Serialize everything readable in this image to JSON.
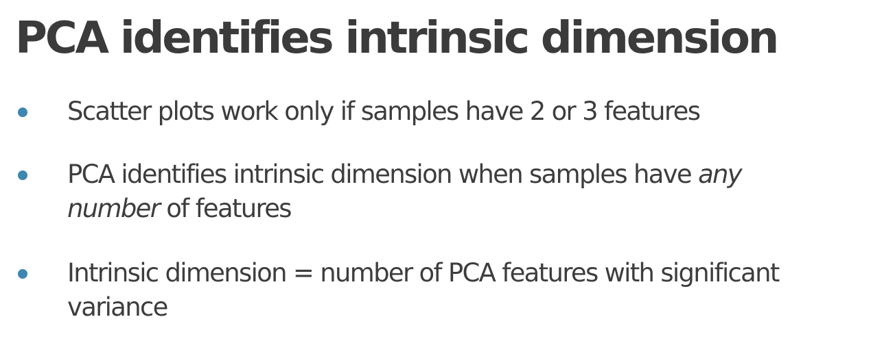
{
  "slide": {
    "title": "PCA identifies intrinsic dimension",
    "bullets": [
      {
        "line1": "Scatter plots work only if samples have 2 or 3 features"
      },
      {
        "line1_plain": "PCA identifies intrinsic dimension when samples have ",
        "line1_italic": "any",
        "line2_italic": "number",
        "line2_plain": " of features"
      },
      {
        "line1": "Intrinsic dimension = number of PCA features with significant",
        "line2": "variance"
      }
    ]
  },
  "colors": {
    "title": "#3b3b3b",
    "text": "#3d3d3d",
    "bullet": "#3f86b0",
    "background": "#ffffff"
  }
}
